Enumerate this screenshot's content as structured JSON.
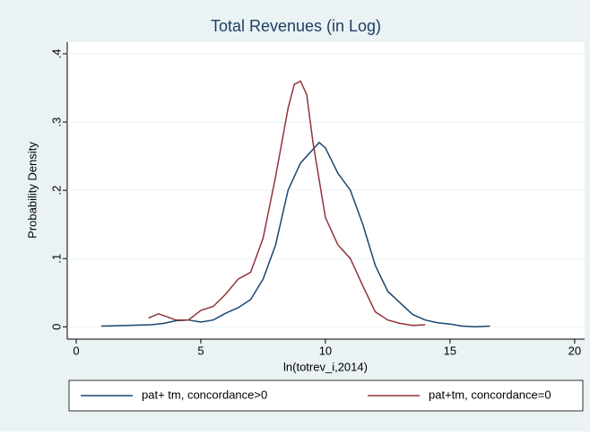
{
  "chart_data": {
    "type": "line",
    "title": "Total Revenues (in Log)",
    "x_label": "ln(totrev_i,2014)",
    "y_label": "Probability Density",
    "xlim": [
      -0.36,
      20.4
    ],
    "ylim": [
      -0.018,
      0.417
    ],
    "xticks": [
      0,
      5,
      10,
      15,
      20
    ],
    "yticks": [
      0,
      {
        "value": 0.1,
        "label": ".1"
      },
      {
        "value": 0.2,
        "label": ".2"
      },
      {
        "value": 0.3,
        "label": ".3"
      },
      {
        "value": 0.4,
        "label": ".4"
      }
    ],
    "grid": true,
    "legend": "bottom",
    "series": [
      {
        "name": "pat+ tm, concordance>0",
        "color": "#1a476f",
        "x": [
          1,
          2,
          3,
          3.5,
          4,
          4.5,
          5,
          5.5,
          6,
          6.5,
          7,
          7.5,
          8,
          8.5,
          9,
          9.5,
          9.75,
          10,
          10.5,
          11,
          11.5,
          12,
          12.5,
          13,
          13.5,
          14,
          14.5,
          15,
          15.5,
          16,
          16.6
        ],
        "values": [
          0.001,
          0.002,
          0.003,
          0.005,
          0.009,
          0.01,
          0.007,
          0.01,
          0.02,
          0.028,
          0.04,
          0.07,
          0.12,
          0.2,
          0.24,
          0.26,
          0.27,
          0.262,
          0.225,
          0.2,
          0.15,
          0.09,
          0.052,
          0.035,
          0.018,
          0.01,
          0.006,
          0.004,
          0.001,
          0.0,
          0.001
        ]
      },
      {
        "name": "pat+tm, concordance=0",
        "color": "#90353b",
        "x": [
          2.9,
          3.3,
          3.7,
          4,
          4.5,
          5,
          5.5,
          6,
          6.5,
          7,
          7.5,
          8,
          8.5,
          8.75,
          9,
          9.25,
          9.5,
          10,
          10.5,
          11,
          11.5,
          12,
          12.5,
          13,
          13.5,
          14
        ],
        "values": [
          0.013,
          0.019,
          0.014,
          0.01,
          0.01,
          0.024,
          0.03,
          0.048,
          0.07,
          0.08,
          0.13,
          0.22,
          0.32,
          0.355,
          0.36,
          0.34,
          0.27,
          0.16,
          0.12,
          0.1,
          0.06,
          0.022,
          0.01,
          0.005,
          0.002,
          0.003
        ]
      }
    ]
  }
}
